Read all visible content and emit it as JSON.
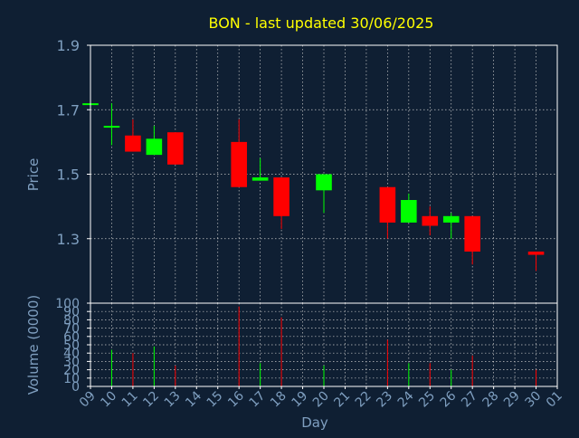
{
  "colors": {
    "background": "#0f1f33",
    "frame": "#ffffff",
    "grid": "#c8c8c8",
    "title": "#ffff00",
    "axis_text": "#7f9fc0",
    "up": "#00ff00",
    "down": "#ff0000"
  },
  "chart_data": {
    "type": "candlestick",
    "title": "BON - last updated 30/06/2025",
    "xlabel": "Day",
    "ylabel": "Price",
    "ylabel_volume": "Volume (0000)",
    "x_ticks": [
      "09",
      "10",
      "11",
      "12",
      "13",
      "14",
      "15",
      "16",
      "17",
      "18",
      "19",
      "20",
      "21",
      "22",
      "23",
      "24",
      "25",
      "26",
      "27",
      "28",
      "29",
      "30",
      "01"
    ],
    "price_ylim": [
      1.1,
      1.9
    ],
    "price_ticks": [
      "1.3",
      "1.5",
      "1.7",
      "1.9"
    ],
    "volume_ylim": [
      0,
      100
    ],
    "volume_ticks": [
      "0",
      "10",
      "20",
      "30",
      "40",
      "50",
      "60",
      "70",
      "80",
      "90",
      "100"
    ],
    "grid": true,
    "candles": [
      {
        "day": "09",
        "open": 1.72,
        "high": 1.72,
        "low": 1.72,
        "close": 1.72
      },
      {
        "day": "10",
        "open": 1.65,
        "high": 1.72,
        "low": 1.59,
        "close": 1.65
      },
      {
        "day": "11",
        "open": 1.62,
        "high": 1.67,
        "low": 1.57,
        "close": 1.57
      },
      {
        "day": "12",
        "open": 1.56,
        "high": 1.65,
        "low": 1.56,
        "close": 1.61
      },
      {
        "day": "13",
        "open": 1.63,
        "high": 1.63,
        "low": 1.53,
        "close": 1.53
      },
      {
        "day": "16",
        "open": 1.6,
        "high": 1.67,
        "low": 1.46,
        "close": 1.46
      },
      {
        "day": "17",
        "open": 1.48,
        "high": 1.55,
        "low": 1.48,
        "close": 1.49
      },
      {
        "day": "18",
        "open": 1.49,
        "high": 1.49,
        "low": 1.33,
        "close": 1.37
      },
      {
        "day": "20",
        "open": 1.45,
        "high": 1.5,
        "low": 1.38,
        "close": 1.5
      },
      {
        "day": "23",
        "open": 1.46,
        "high": 1.46,
        "low": 1.3,
        "close": 1.35
      },
      {
        "day": "24",
        "open": 1.35,
        "high": 1.44,
        "low": 1.35,
        "close": 1.42
      },
      {
        "day": "25",
        "open": 1.37,
        "high": 1.4,
        "low": 1.31,
        "close": 1.34
      },
      {
        "day": "26",
        "open": 1.35,
        "high": 1.38,
        "low": 1.3,
        "close": 1.37
      },
      {
        "day": "27",
        "open": 1.37,
        "high": 1.37,
        "low": 1.22,
        "close": 1.26
      },
      {
        "day": "30",
        "open": 1.26,
        "high": 1.26,
        "low": 1.2,
        "close": 1.25
      }
    ],
    "volume": [
      {
        "day": "10",
        "value": 44,
        "direction": "up"
      },
      {
        "day": "11",
        "value": 40,
        "direction": "down"
      },
      {
        "day": "12",
        "value": 48,
        "direction": "up"
      },
      {
        "day": "13",
        "value": 25,
        "direction": "down"
      },
      {
        "day": "16",
        "value": 96,
        "direction": "down"
      },
      {
        "day": "17",
        "value": 28,
        "direction": "up"
      },
      {
        "day": "18",
        "value": 83,
        "direction": "down"
      },
      {
        "day": "20",
        "value": 25,
        "direction": "up"
      },
      {
        "day": "23",
        "value": 56,
        "direction": "down"
      },
      {
        "day": "24",
        "value": 28,
        "direction": "up"
      },
      {
        "day": "25",
        "value": 28,
        "direction": "down"
      },
      {
        "day": "26",
        "value": 20,
        "direction": "up"
      },
      {
        "day": "27",
        "value": 37,
        "direction": "down"
      },
      {
        "day": "30",
        "value": 20,
        "direction": "down"
      }
    ]
  }
}
